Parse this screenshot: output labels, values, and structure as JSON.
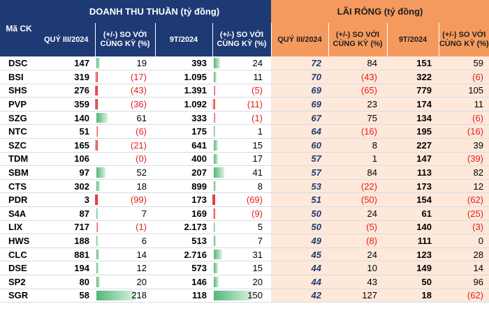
{
  "header": {
    "ma_ck": "Mã CK",
    "doanh_thu_title": "DOANH THU THUẦN (tỷ đồng)",
    "lai_rong_title": "LÃI RÒNG (tỷ đồng)",
    "dt_cols": [
      "QUÝ III/2024",
      "(+/-) SO VỚI CÙNG KỲ (%)",
      "9T/2024",
      "(+/-) SO VỚI CÙNG KỲ (%)"
    ],
    "lr_cols": [
      "QUÝ III/2024",
      "(+/-) SO VỚI CÙNG KỲ (%)",
      "9T/2024",
      "(+/-) SO VỚI CÙNG KỲ (%)"
    ]
  },
  "rows": [
    {
      "ticker": "DSC",
      "dt_q3": "147",
      "dt_q3_chg": "19",
      "dt_q3_chg_val": 19,
      "dt_9t": "393",
      "dt_9t_chg": "24",
      "dt_9t_chg_val": 24,
      "lr_q3": "72",
      "lr_q3_chg": "84",
      "lr_9t": "151",
      "lr_9t_chg": "59"
    },
    {
      "ticker": "BSI",
      "dt_q3": "319",
      "dt_q3_chg": "(17)",
      "dt_q3_chg_val": -17,
      "dt_9t": "1.095",
      "dt_9t_chg": "11",
      "dt_9t_chg_val": 11,
      "lr_q3": "70",
      "lr_q3_chg": "(43)",
      "lr_9t": "322",
      "lr_9t_chg": "(6)"
    },
    {
      "ticker": "SHS",
      "dt_q3": "276",
      "dt_q3_chg": "(43)",
      "dt_q3_chg_val": -43,
      "dt_9t": "1.391",
      "dt_9t_chg": "(5)",
      "dt_9t_chg_val": -5,
      "lr_q3": "69",
      "lr_q3_chg": "(65)",
      "lr_9t": "779",
      "lr_9t_chg": "105"
    },
    {
      "ticker": "PVP",
      "dt_q3": "359",
      "dt_q3_chg": "(36)",
      "dt_q3_chg_val": -36,
      "dt_9t": "1.092",
      "dt_9t_chg": "(11)",
      "dt_9t_chg_val": -11,
      "lr_q3": "69",
      "lr_q3_chg": "23",
      "lr_9t": "174",
      "lr_9t_chg": "11"
    },
    {
      "ticker": "SZG",
      "dt_q3": "140",
      "dt_q3_chg": "61",
      "dt_q3_chg_val": 61,
      "dt_9t": "333",
      "dt_9t_chg": "(1)",
      "dt_9t_chg_val": -1,
      "lr_q3": "67",
      "lr_q3_chg": "75",
      "lr_9t": "134",
      "lr_9t_chg": "(6)"
    },
    {
      "ticker": "NTC",
      "dt_q3": "51",
      "dt_q3_chg": "(6)",
      "dt_q3_chg_val": -6,
      "dt_9t": "175",
      "dt_9t_chg": "1",
      "dt_9t_chg_val": 1,
      "lr_q3": "64",
      "lr_q3_chg": "(16)",
      "lr_9t": "195",
      "lr_9t_chg": "(16)"
    },
    {
      "ticker": "SZC",
      "dt_q3": "165",
      "dt_q3_chg": "(21)",
      "dt_q3_chg_val": -21,
      "dt_9t": "641",
      "dt_9t_chg": "15",
      "dt_9t_chg_val": 15,
      "lr_q3": "60",
      "lr_q3_chg": "8",
      "lr_9t": "227",
      "lr_9t_chg": "39"
    },
    {
      "ticker": "TDM",
      "dt_q3": "106",
      "dt_q3_chg": "(0)",
      "dt_q3_chg_val": 0,
      "dt_9t": "400",
      "dt_9t_chg": "17",
      "dt_9t_chg_val": 17,
      "lr_q3": "57",
      "lr_q3_chg": "1",
      "lr_9t": "147",
      "lr_9t_chg": "(39)"
    },
    {
      "ticker": "SBM",
      "dt_q3": "97",
      "dt_q3_chg": "52",
      "dt_q3_chg_val": 52,
      "dt_9t": "207",
      "dt_9t_chg": "41",
      "dt_9t_chg_val": 41,
      "lr_q3": "57",
      "lr_q3_chg": "84",
      "lr_9t": "113",
      "lr_9t_chg": "82"
    },
    {
      "ticker": "CTS",
      "dt_q3": "302",
      "dt_q3_chg": "18",
      "dt_q3_chg_val": 18,
      "dt_9t": "899",
      "dt_9t_chg": "8",
      "dt_9t_chg_val": 8,
      "lr_q3": "53",
      "lr_q3_chg": "(22)",
      "lr_9t": "173",
      "lr_9t_chg": "12"
    },
    {
      "ticker": "PDR",
      "dt_q3": "3",
      "dt_q3_chg": "(99)",
      "dt_q3_chg_val": -99,
      "dt_9t": "173",
      "dt_9t_chg": "(69)",
      "dt_9t_chg_val": -69,
      "lr_q3": "51",
      "lr_q3_chg": "(50)",
      "lr_9t": "154",
      "lr_9t_chg": "(62)"
    },
    {
      "ticker": "S4A",
      "dt_q3": "87",
      "dt_q3_chg": "7",
      "dt_q3_chg_val": 7,
      "dt_9t": "169",
      "dt_9t_chg": "(9)",
      "dt_9t_chg_val": -9,
      "lr_q3": "50",
      "lr_q3_chg": "24",
      "lr_9t": "61",
      "lr_9t_chg": "(25)"
    },
    {
      "ticker": "LIX",
      "dt_q3": "717",
      "dt_q3_chg": "(1)",
      "dt_q3_chg_val": -1,
      "dt_9t": "2.173",
      "dt_9t_chg": "5",
      "dt_9t_chg_val": 5,
      "lr_q3": "50",
      "lr_q3_chg": "(5)",
      "lr_9t": "140",
      "lr_9t_chg": "(3)"
    },
    {
      "ticker": "HWS",
      "dt_q3": "188",
      "dt_q3_chg": "6",
      "dt_q3_chg_val": 6,
      "dt_9t": "513",
      "dt_9t_chg": "7",
      "dt_9t_chg_val": 7,
      "lr_q3": "49",
      "lr_q3_chg": "(8)",
      "lr_9t": "111",
      "lr_9t_chg": "0"
    },
    {
      "ticker": "CLC",
      "dt_q3": "881",
      "dt_q3_chg": "14",
      "dt_q3_chg_val": 14,
      "dt_9t": "2.716",
      "dt_9t_chg": "31",
      "dt_9t_chg_val": 31,
      "lr_q3": "45",
      "lr_q3_chg": "24",
      "lr_9t": "123",
      "lr_9t_chg": "28"
    },
    {
      "ticker": "DSE",
      "dt_q3": "194",
      "dt_q3_chg": "12",
      "dt_q3_chg_val": 12,
      "dt_9t": "573",
      "dt_9t_chg": "15",
      "dt_9t_chg_val": 15,
      "lr_q3": "44",
      "lr_q3_chg": "10",
      "lr_9t": "149",
      "lr_9t_chg": "14"
    },
    {
      "ticker": "SP2",
      "dt_q3": "80",
      "dt_q3_chg": "20",
      "dt_q3_chg_val": 20,
      "dt_9t": "146",
      "dt_9t_chg": "20",
      "dt_9t_chg_val": 20,
      "lr_q3": "44",
      "lr_q3_chg": "43",
      "lr_9t": "50",
      "lr_9t_chg": "96"
    },
    {
      "ticker": "SGR",
      "dt_q3": "58",
      "dt_q3_chg": "218",
      "dt_q3_chg_val": 218,
      "dt_9t": "118",
      "dt_9t_chg": "150",
      "dt_9t_chg_val": 150,
      "lr_q3": "42",
      "lr_q3_chg": "127",
      "lr_9t": "18",
      "lr_9t_chg": "(62)"
    }
  ],
  "colors": {
    "navy": "#1e3a75",
    "orange": "#f59a5e",
    "peach": "#fde8d9",
    "negative": "#e41e1e",
    "bar_positive": "#52b877",
    "bar_negative": "#e43131"
  }
}
